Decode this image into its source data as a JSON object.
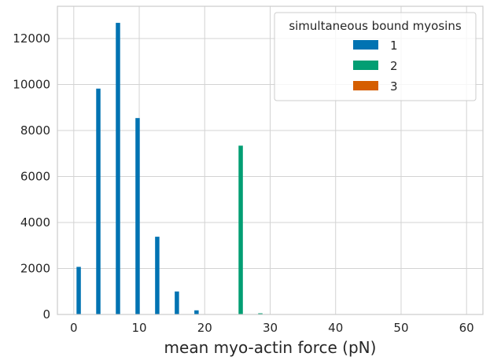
{
  "chart_data": {
    "type": "bar",
    "xlabel": "mean myo-actin force (pN)",
    "ylabel": "",
    "xlim": [
      -2.5,
      62.5
    ],
    "ylim": [
      0,
      13400
    ],
    "x_ticks": [
      0,
      10,
      20,
      30,
      40,
      50,
      60
    ],
    "y_ticks": [
      0,
      2000,
      4000,
      6000,
      8000,
      10000,
      12000
    ],
    "grid": true,
    "legend": {
      "title": "simultaneous bound myosins",
      "placement": "top-right"
    },
    "bar_width": 0.66,
    "series": [
      {
        "name": "1",
        "color": "#0173b2",
        "x": [
          0.75,
          3.75,
          6.75,
          9.75,
          12.75,
          15.75,
          18.75
        ],
        "values": [
          2070,
          9820,
          12680,
          8540,
          3380,
          1000,
          180
        ]
      },
      {
        "name": "2",
        "color": "#029e73",
        "x": [
          25.5,
          28.5
        ],
        "values": [
          7340,
          50
        ]
      },
      {
        "name": "3",
        "color": "#d55e00",
        "x": [],
        "values": []
      }
    ]
  }
}
